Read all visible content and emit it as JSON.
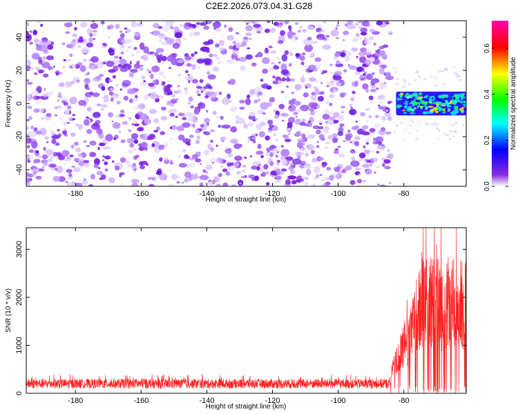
{
  "title": "C2E2.2026.073.04.31.G28",
  "colors": {
    "spectrogram_base": "#8a2be2",
    "snr_line": "#ff2020",
    "axis": "#000000"
  },
  "chart_data": [
    {
      "type": "heatmap",
      "xlabel": "Height of straight line (km)",
      "ylabel": "Frequency (Hz)",
      "xlim": [
        -195,
        -61
      ],
      "ylim": [
        -50,
        50
      ],
      "xticks": [
        -180,
        -160,
        -140,
        -120,
        -100,
        -80
      ],
      "xtick_labels": [
        "-180",
        "-160",
        "-140",
        "-120",
        "-100",
        "-80"
      ],
      "yticks": [
        -40,
        -20,
        0,
        20,
        40
      ],
      "ytick_labels": [
        "-40",
        "-20",
        "0",
        "20",
        "40"
      ],
      "noise_region_km": [
        -195,
        -84
      ],
      "signal_region_km": [
        -83,
        -61
      ],
      "signal_band_hz": [
        -8,
        8
      ],
      "colorbar": {
        "label": "Normalized spectral amplitude",
        "range": [
          0.0,
          0.72
        ],
        "ticks": [
          0.0,
          0.2,
          0.4,
          0.6
        ],
        "tick_labels": [
          "0.0",
          "0.2",
          "0.4",
          "0.6"
        ]
      }
    },
    {
      "type": "line",
      "xlabel": "Height of straight line (km)",
      "ylabel": "SNR (10 * v/v)",
      "xlim": [
        -195,
        -61
      ],
      "ylim": [
        0,
        3450
      ],
      "xticks": [
        -180,
        -160,
        -140,
        -120,
        -100,
        -80
      ],
      "xtick_labels": [
        "-180",
        "-160",
        "-140",
        "-120",
        "-100",
        "-80"
      ],
      "yticks": [
        0,
        1000,
        2000,
        3000
      ],
      "ytick_labels": [
        "0",
        "1000",
        "2000",
        "3000"
      ],
      "series": [
        {
          "name": "SNR",
          "noise_level": [
            100,
            300
          ],
          "signal_start_km": -84,
          "signal_peak": 3450
        }
      ]
    }
  ]
}
